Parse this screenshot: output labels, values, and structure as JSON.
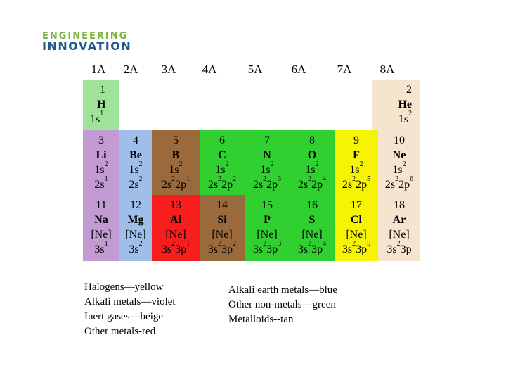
{
  "logo": {
    "line1": "ENGINEERING",
    "line2": "INNOVATION"
  },
  "groups": [
    "1A",
    "2A",
    "3A",
    "4A",
    "5A",
    "6A",
    "7A",
    "8A"
  ],
  "colors": {
    "alkali": "#c39bd3",
    "alkali_earth": "#9fbfea",
    "metalloid": "#9b6a3c",
    "nonmetal": "#2fd02f",
    "halogen": "#f7f305",
    "inert": "#f6e4cf",
    "other_metal": "#f81e1e",
    "hydrogen": "#9fe39a"
  },
  "row1": {
    "H": {
      "num": "1",
      "sym": "H",
      "cfg": "1s",
      "cfg_sup": "1"
    },
    "He": {
      "num": "2",
      "sym": "He",
      "cfg": "1s",
      "cfg_sup": "2"
    }
  },
  "row2": [
    {
      "num": "3",
      "sym": "Li",
      "c1": "1s",
      "c1s": "2",
      "c2a": "2s",
      "c2as": "1",
      "c2b": "",
      "c2bs": ""
    },
    {
      "num": "4",
      "sym": "Be",
      "c1": "1s",
      "c1s": "2",
      "c2a": "2s",
      "c2as": "2",
      "c2b": "",
      "c2bs": ""
    },
    {
      "num": "5",
      "sym": "B",
      "c1": "1s",
      "c1s": "2",
      "c2a": "2s",
      "c2as": "2",
      "c2b": "2p",
      "c2bs": "1"
    },
    {
      "num": "6",
      "sym": "C",
      "c1": "1s",
      "c1s": "2",
      "c2a": "2s",
      "c2as": "2",
      "c2b": "2p",
      "c2bs": "2"
    },
    {
      "num": "7",
      "sym": "N",
      "c1": "1s",
      "c1s": "2",
      "c2a": "2s",
      "c2as": "2",
      "c2b": "2p",
      "c2bs": "3"
    },
    {
      "num": "8",
      "sym": "O",
      "c1": "1s",
      "c1s": "2",
      "c2a": "2s",
      "c2as": "2",
      "c2b": "2p",
      "c2bs": "4"
    },
    {
      "num": "9",
      "sym": "F",
      "c1": "1s",
      "c1s": "2",
      "c2a": "2s",
      "c2as": "2",
      "c2b": "2p",
      "c2bs": "5"
    },
    {
      "num": "10",
      "sym": "Ne",
      "c1": "1s",
      "c1s": "2",
      "c2a": "2s",
      "c2as": "2",
      "c2b": "2p",
      "c2bs": "6"
    }
  ],
  "row3": [
    {
      "num": "11",
      "sym": "Na",
      "c1": "[Ne]",
      "c2a": "3s",
      "c2as": "1",
      "c2b": "",
      "c2bs": ""
    },
    {
      "num": "12",
      "sym": "Mg",
      "c1": "[Ne]",
      "c2a": "3s",
      "c2as": "2",
      "c2b": "",
      "c2bs": ""
    },
    {
      "num": "13",
      "sym": "Al",
      "c1": "[Ne]",
      "c2a": "3s",
      "c2as": "2",
      "c2b": "3p",
      "c2bs": "1"
    },
    {
      "num": "14",
      "sym": "Si",
      "c1": "[Ne]",
      "c2a": "3s",
      "c2as": "2",
      "c2b": "3p",
      "c2bs": "2"
    },
    {
      "num": "15",
      "sym": "P",
      "c1": "[Ne]",
      "c2a": "3s",
      "c2as": "2",
      "c2b": "3p",
      "c2bs": "3"
    },
    {
      "num": "16",
      "sym": "S",
      "c1": "[Ne]",
      "c2a": "3s",
      "c2as": "2",
      "c2b": "3p",
      "c2bs": "4"
    },
    {
      "num": "17",
      "sym": "Cl",
      "c1": "[Ne]",
      "c2a": "3s",
      "c2as": "2",
      "c2b": "3p",
      "c2bs": "5"
    },
    {
      "num": "18",
      "sym": "Ar",
      "c1": "[Ne]",
      "c2a": "3s",
      "c2as": "2",
      "c2b": "3p",
      "c2bs": ""
    }
  ],
  "legend_left": [
    "Halogens—yellow",
    "Alkali metals—violet",
    "Inert gases—beige",
    "Other metals-red"
  ],
  "legend_right": [
    "Alkali earth metals—blue",
    "Other non-metals—green",
    "Metalloids--tan"
  ]
}
